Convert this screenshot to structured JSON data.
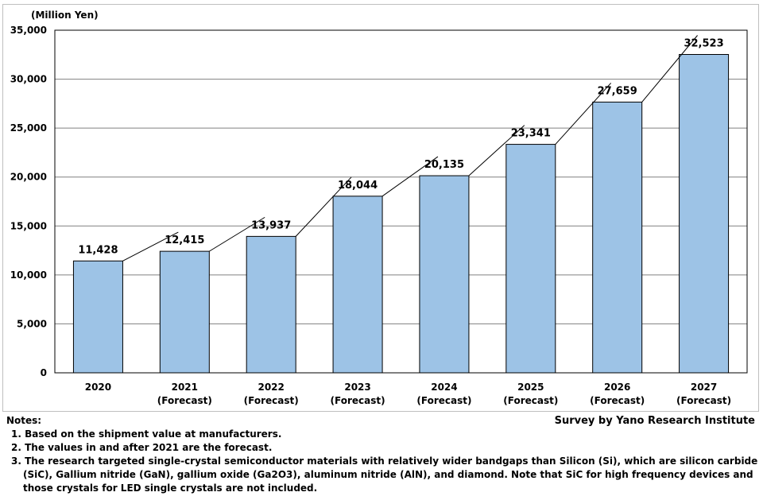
{
  "chart_data": {
    "type": "bar",
    "ylabel": "(Million Yen)",
    "ylim": [
      0,
      35000
    ],
    "yticks": [
      "0",
      "5,000",
      "10,000",
      "15,000",
      "20,000",
      "25,000",
      "30,000",
      "35,000"
    ],
    "grid": true,
    "categories": [
      [
        "2020",
        ""
      ],
      [
        "2021",
        "(Forecast)"
      ],
      [
        "2022",
        "(Forecast)"
      ],
      [
        "2023",
        "(Forecast)"
      ],
      [
        "2024",
        "(Forecast)"
      ],
      [
        "2025",
        "(Forecast)"
      ],
      [
        "2026",
        "(Forecast)"
      ],
      [
        "2027",
        "(Forecast)"
      ]
    ],
    "values": [
      11428,
      12415,
      13937,
      18044,
      20135,
      23341,
      27659,
      32523
    ],
    "value_labels": [
      "11,428",
      "12,415",
      "13,937",
      "18,044",
      "20,135",
      "23,341",
      "27,659",
      "32,523"
    ],
    "bar_color": "#9dc3e6",
    "bar_edge_color": "#000000"
  },
  "notes": {
    "title": "Notes:",
    "items": [
      "1. Based on the shipment value at manufacturers.",
      "2. The values in and after 2021 are the forecast.",
      "3. The research targeted single-crystal semiconductor materials with relatively wider bandgaps than Silicon (Si), which are silicon carbide (SiC), Gallium nitride (GaN), gallium oxide (Ga2O3), aluminum nitride (AlN), and diamond. Note that SiC for high frequency devices and those crystals for LED single crystals are not included."
    ]
  },
  "source": "Survey by Yano Research Institute"
}
